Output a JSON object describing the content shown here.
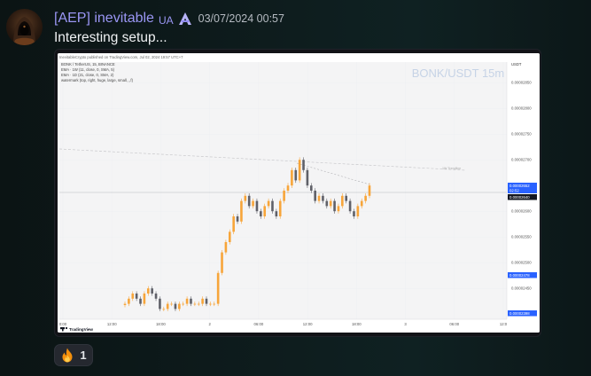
{
  "message": {
    "username": "[AEP] inevitable",
    "tag": "UA",
    "timestamp": "03/07/2024 00:57",
    "text": "Interesting setup..."
  },
  "chart_embed": {
    "publisher_line": "InevitableCrypto published on TradingView.com, Jul 02, 2024 19:57 UTC+7",
    "legend": [
      "BONK / TetherUS, 15, BINANCE",
      "EMA · 1W (11, close, 0, SMA, 5)",
      "EMA · 1D (21, close, 0, SMA, 2)",
      "watermark (top, right, huge, large, small, ,,f)"
    ],
    "watermark": "BONK/USDT 15m",
    "price_axis_currency": "USDT",
    "brand": "TradingView",
    "trendline_label": "1W Trendline",
    "price_badges": {
      "current": "0.00002652",
      "current_sub": "02:52",
      "line": "0.00002640",
      "low_marker": "0.00002478",
      "bottom": "0.00002398"
    },
    "colors": {
      "bull": "#f7a53a",
      "bear": "#5f6068",
      "grid": "#eeeff2",
      "badge_blue": "#2962ff"
    }
  },
  "chart_data": {
    "type": "candlestick",
    "x_tick_labels": [
      "0:00",
      "12:00",
      "18:00",
      "2",
      "06:00",
      "12:00",
      "18:00",
      "3",
      "06:00",
      "12:0"
    ],
    "y_tick_labels": [
      "0.00002850",
      "0.00002800",
      "0.00002750",
      "0.00002700",
      "0.00002600",
      "0.00002550",
      "0.00002500",
      "0.00002450"
    ],
    "ylim": [
      2.39e-05,
      2.89e-05
    ],
    "close_series": [
      2.42e-05,
      2.43e-05,
      2.44e-05,
      2.43e-05,
      2.42e-05,
      2.44e-05,
      2.45e-05,
      2.44e-05,
      2.43e-05,
      2.41e-05,
      2.41e-05,
      2.42e-05,
      2.42e-05,
      2.41e-05,
      2.42e-05,
      2.42e-05,
      2.43e-05,
      2.42e-05,
      2.42e-05,
      2.42e-05,
      2.43e-05,
      2.42e-05,
      2.42e-05,
      2.42e-05,
      2.48e-05,
      2.52e-05,
      2.54e-05,
      2.56e-05,
      2.59e-05,
      2.58e-05,
      2.62e-05,
      2.63e-05,
      2.61e-05,
      2.62e-05,
      2.6e-05,
      2.59e-05,
      2.61e-05,
      2.62e-05,
      2.6e-05,
      2.59e-05,
      2.62e-05,
      2.64e-05,
      2.65e-05,
      2.68e-05,
      2.66e-05,
      2.7e-05,
      2.68e-05,
      2.65e-05,
      2.64e-05,
      2.62e-05,
      2.63e-05,
      2.62e-05,
      2.61e-05,
      2.62e-05,
      2.6e-05,
      2.61e-05,
      2.63e-05,
      2.62e-05,
      2.6e-05,
      2.59e-05,
      2.61e-05,
      2.62e-05,
      2.63e-05,
      2.65e-05
    ]
  },
  "reaction": {
    "emoji_name": "fire-emoji",
    "count": "1"
  }
}
